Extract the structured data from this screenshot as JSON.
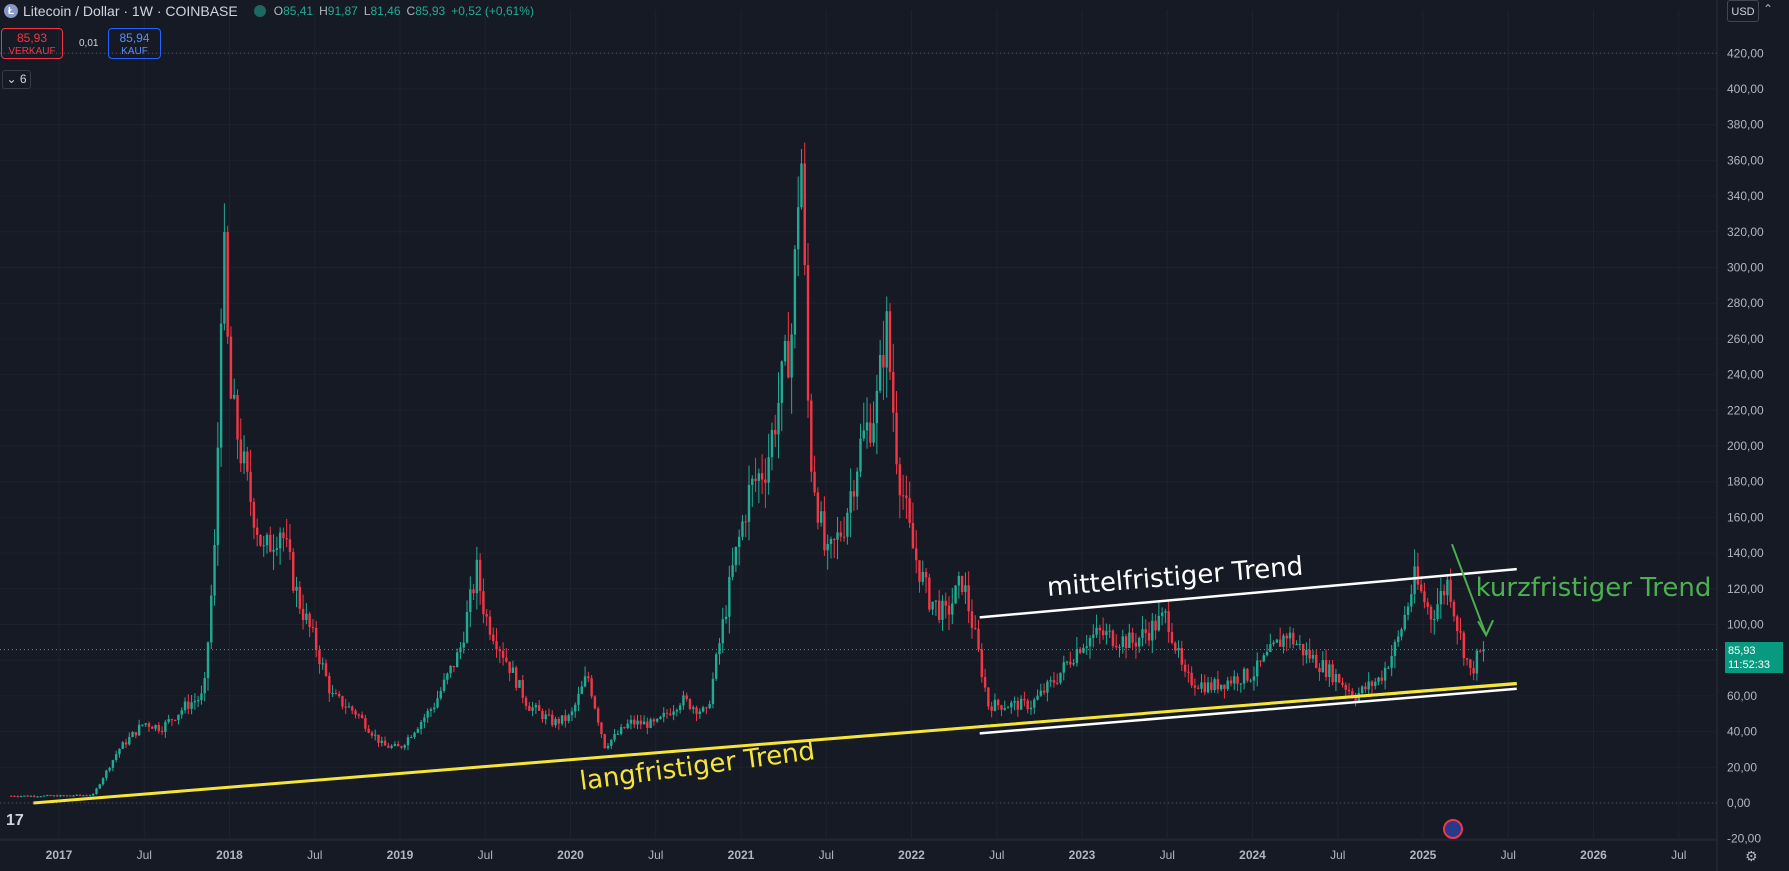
{
  "header": {
    "symbol_icon": "litecoin-icon",
    "title": "Litecoin / Dollar · 1W · COINBASE",
    "ohlc": {
      "o_label": "O",
      "o": "85,41",
      "h_label": "H",
      "h": "91,87",
      "l_label": "L",
      "l": "81,46",
      "c_label": "C",
      "c": "85,93",
      "change": "+0,52 (+0,61%)"
    }
  },
  "trade": {
    "sell_price": "85,93",
    "sell_label": "VERKAUF",
    "spread": "0,01",
    "buy_price": "85,94",
    "buy_label": "KAUF"
  },
  "indicator_toggle": "6",
  "currency": "USD",
  "last_price": {
    "value": "85,93",
    "countdown": "11:52:33"
  },
  "colors": {
    "up": "#22ab94",
    "down": "#f23645",
    "background": "#161a25",
    "long_trend": "#f5e53a",
    "mid_trend": "#ffffff",
    "short_trend": "#4caf50"
  },
  "chart_data": {
    "type": "candlestick",
    "x_axis_labels": [
      {
        "label": "2017",
        "date": 2017.0
      },
      {
        "label": "Jul",
        "date": 2017.5
      },
      {
        "label": "2018",
        "date": 2018.0
      },
      {
        "label": "Jul",
        "date": 2018.5
      },
      {
        "label": "2019",
        "date": 2019.0
      },
      {
        "label": "Jul",
        "date": 2019.5
      },
      {
        "label": "2020",
        "date": 2020.0
      },
      {
        "label": "Jul",
        "date": 2020.5
      },
      {
        "label": "2021",
        "date": 2021.0
      },
      {
        "label": "Jul",
        "date": 2021.5
      },
      {
        "label": "2022",
        "date": 2022.0
      },
      {
        "label": "Jul",
        "date": 2022.5
      },
      {
        "label": "2023",
        "date": 2023.0
      },
      {
        "label": "Jul",
        "date": 2023.5
      },
      {
        "label": "2024",
        "date": 2024.0
      },
      {
        "label": "Jul",
        "date": 2024.5
      },
      {
        "label": "2025",
        "date": 2025.0
      },
      {
        "label": "Jul",
        "date": 2025.5
      },
      {
        "label": "2026",
        "date": 2026.0
      },
      {
        "label": "Jul",
        "date": 2026.5
      }
    ],
    "y_ticks": [
      {
        "label": "420,00",
        "value": 420
      },
      {
        "label": "400,00",
        "value": 400
      },
      {
        "label": "380,00",
        "value": 380
      },
      {
        "label": "360,00",
        "value": 360
      },
      {
        "label": "340,00",
        "value": 340
      },
      {
        "label": "320,00",
        "value": 320
      },
      {
        "label": "300,00",
        "value": 300
      },
      {
        "label": "280,00",
        "value": 280
      },
      {
        "label": "260,00",
        "value": 260
      },
      {
        "label": "240,00",
        "value": 240
      },
      {
        "label": "220,00",
        "value": 220
      },
      {
        "label": "200,00",
        "value": 200
      },
      {
        "label": "180,00",
        "value": 180
      },
      {
        "label": "160,00",
        "value": 160
      },
      {
        "label": "140,00",
        "value": 140
      },
      {
        "label": "120,00",
        "value": 120
      },
      {
        "label": "100,00",
        "value": 100
      },
      {
        "label": "80,00",
        "value": 80
      },
      {
        "label": "60,00",
        "value": 60
      },
      {
        "label": "40,00",
        "value": 40
      },
      {
        "label": "20,00",
        "value": 20
      },
      {
        "label": "0,00",
        "value": 0
      },
      {
        "label": "-20,00",
        "value": -20
      }
    ],
    "ylim": [
      -20,
      420
    ],
    "x_range": [
      2016.72,
      2026.9
    ],
    "last_close": 85.93,
    "price_path": [
      [
        2016.72,
        4
      ],
      [
        2017.0,
        4
      ],
      [
        2017.2,
        4.5
      ],
      [
        2017.35,
        30
      ],
      [
        2017.5,
        45
      ],
      [
        2017.6,
        42
      ],
      [
        2017.75,
        55
      ],
      [
        2017.85,
        60
      ],
      [
        2017.92,
        150
      ],
      [
        2017.96,
        325
      ],
      [
        2018.0,
        230
      ],
      [
        2018.1,
        180
      ],
      [
        2018.2,
        140
      ],
      [
        2018.3,
        155
      ],
      [
        2018.4,
        115
      ],
      [
        2018.5,
        90
      ],
      [
        2018.6,
        60
      ],
      [
        2018.75,
        50
      ],
      [
        2018.9,
        32
      ],
      [
        2019.0,
        31
      ],
      [
        2019.2,
        55
      ],
      [
        2019.35,
        85
      ],
      [
        2019.45,
        130
      ],
      [
        2019.5,
        105
      ],
      [
        2019.6,
        85
      ],
      [
        2019.75,
        55
      ],
      [
        2019.9,
        45
      ],
      [
        2020.0,
        48
      ],
      [
        2020.1,
        72
      ],
      [
        2020.2,
        32
      ],
      [
        2020.35,
        45
      ],
      [
        2020.5,
        44
      ],
      [
        2020.65,
        58
      ],
      [
        2020.8,
        50
      ],
      [
        2020.95,
        130
      ],
      [
        2021.05,
        175
      ],
      [
        2021.15,
        190
      ],
      [
        2021.3,
        265
      ],
      [
        2021.35,
        375
      ],
      [
        2021.4,
        200
      ],
      [
        2021.5,
        135
      ],
      [
        2021.6,
        155
      ],
      [
        2021.7,
        200
      ],
      [
        2021.8,
        225
      ],
      [
        2021.85,
        270
      ],
      [
        2021.92,
        190
      ],
      [
        2022.0,
        145
      ],
      [
        2022.1,
        115
      ],
      [
        2022.2,
        105
      ],
      [
        2022.3,
        125
      ],
      [
        2022.38,
        90
      ],
      [
        2022.45,
        55
      ],
      [
        2022.55,
        55
      ],
      [
        2022.7,
        55
      ],
      [
        2022.85,
        70
      ],
      [
        2023.0,
        90
      ],
      [
        2023.1,
        95
      ],
      [
        2023.3,
        90
      ],
      [
        2023.5,
        105
      ],
      [
        2023.6,
        70
      ],
      [
        2023.75,
        65
      ],
      [
        2023.9,
        70
      ],
      [
        2024.0,
        72
      ],
      [
        2024.2,
        95
      ],
      [
        2024.3,
        85
      ],
      [
        2024.5,
        70
      ],
      [
        2024.6,
        60
      ],
      [
        2024.75,
        70
      ],
      [
        2024.85,
        90
      ],
      [
        2024.95,
        125
      ],
      [
        2025.05,
        105
      ],
      [
        2025.15,
        125
      ],
      [
        2025.2,
        100
      ],
      [
        2025.28,
        72
      ],
      [
        2025.32,
        82
      ],
      [
        2025.36,
        85.93
      ]
    ],
    "trendlines": [
      {
        "name": "long",
        "label": "langfristiger Trend",
        "color": "#f5e53a",
        "points": [
          [
            2016.85,
            0
          ],
          [
            2025.55,
            67
          ]
        ]
      },
      {
        "name": "mid_upper",
        "label": "mittelfristiger Trend",
        "color": "#ffffff",
        "points": [
          [
            2022.4,
            104
          ],
          [
            2025.55,
            131
          ]
        ]
      },
      {
        "name": "mid_lower",
        "color": "#ffffff",
        "points": [
          [
            2022.4,
            39
          ],
          [
            2025.55,
            64
          ]
        ]
      },
      {
        "name": "short",
        "label": "kurzfristiger Trend",
        "color": "#4caf50",
        "points": [
          [
            2025.17,
            145
          ],
          [
            2025.37,
            94
          ]
        ]
      }
    ]
  }
}
